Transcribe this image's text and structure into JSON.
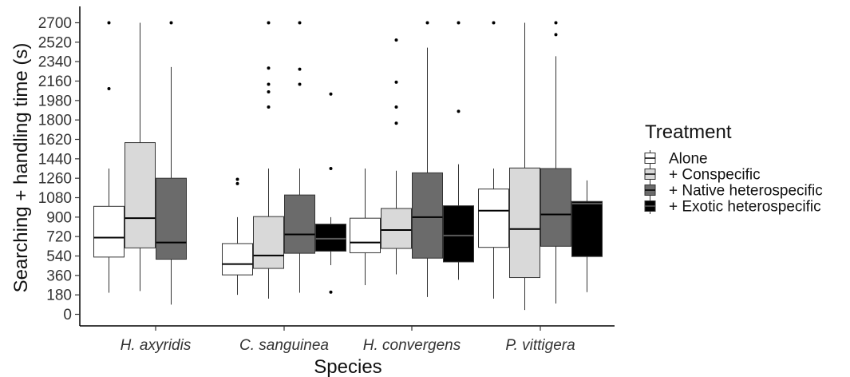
{
  "chart_data": {
    "type": "boxplot",
    "xlabel": "Species",
    "ylabel": "Searching + handling time (s)",
    "ylim": [
      -40,
      2750
    ],
    "yticks": [
      0,
      180,
      360,
      540,
      720,
      900,
      1080,
      1260,
      1440,
      1620,
      1800,
      1980,
      2160,
      2340,
      2520,
      2700
    ],
    "grid": false,
    "legend_position": "right",
    "legend_title": "Treatment",
    "categories": [
      "H. axyridis",
      "C. sanguinea",
      "H. convergens",
      "P. vittigera"
    ],
    "series": [
      {
        "name": "Alone",
        "color": "#ffffff",
        "median_color": "#000000",
        "boxes": [
          {
            "lw": 200,
            "q1": 530,
            "median": 710,
            "q3": 1000,
            "uw": 1350,
            "outliers": [
              2090,
              2700
            ]
          },
          {
            "lw": 180,
            "q1": 365,
            "median": 465,
            "q3": 655,
            "uw": 900,
            "outliers": [
              1210,
              1250
            ]
          },
          {
            "lw": 270,
            "q1": 570,
            "median": 665,
            "q3": 890,
            "uw": 1350,
            "outliers": []
          },
          {
            "lw": 145,
            "q1": 620,
            "median": 960,
            "q3": 1160,
            "uw": 1350,
            "outliers": [
              2700
            ]
          }
        ]
      },
      {
        "name": "+ Conspecific",
        "color": "#d9d9d9",
        "median_color": "#000000",
        "boxes": [
          {
            "lw": 215,
            "q1": 615,
            "median": 890,
            "q3": 1590,
            "uw": 2700,
            "outliers": []
          },
          {
            "lw": 145,
            "q1": 425,
            "median": 545,
            "q3": 905,
            "uw": 1350,
            "outliers": [
              1920,
              2060,
              2130,
              2280,
              2700
            ]
          },
          {
            "lw": 370,
            "q1": 610,
            "median": 780,
            "q3": 980,
            "uw": 1330,
            "outliers": [
              1770,
              1920,
              2150,
              2540
            ]
          },
          {
            "lw": 40,
            "q1": 340,
            "median": 790,
            "q3": 1355,
            "uw": 2700,
            "outliers": []
          }
        ]
      },
      {
        "name": "+ Native heterospecific",
        "color": "#6b6b6b",
        "median_color": "#000000",
        "boxes": [
          {
            "lw": 90,
            "q1": 510,
            "median": 665,
            "q3": 1260,
            "uw": 2290,
            "outliers": [
              2700
            ]
          },
          {
            "lw": 200,
            "q1": 565,
            "median": 740,
            "q3": 1105,
            "uw": 1350,
            "outliers": [
              2130,
              2270,
              2700
            ]
          },
          {
            "lw": 160,
            "q1": 520,
            "median": 900,
            "q3": 1310,
            "uw": 2470,
            "outliers": [
              2700
            ]
          },
          {
            "lw": 100,
            "q1": 630,
            "median": 925,
            "q3": 1350,
            "uw": 2390,
            "outliers": [
              2590,
              2700
            ]
          }
        ]
      },
      {
        "name": "+ Exotic heterospecific",
        "color": "#000000",
        "median_color": "#5a5a5a",
        "boxes": [
          {
            "lw": null,
            "q1": null,
            "median": null,
            "q3": null,
            "uw": null,
            "outliers": []
          },
          {
            "lw": 455,
            "q1": 585,
            "median": 700,
            "q3": 835,
            "uw": 900,
            "outliers": [
              205,
              1350,
              2040
            ]
          },
          {
            "lw": 320,
            "q1": 485,
            "median": 730,
            "q3": 1005,
            "uw": 1390,
            "outliers": [
              1880,
              2700
            ]
          },
          {
            "lw": 205,
            "q1": 535,
            "median": 1025,
            "q3": 1045,
            "uw": 1240,
            "outliers": []
          }
        ]
      }
    ]
  }
}
